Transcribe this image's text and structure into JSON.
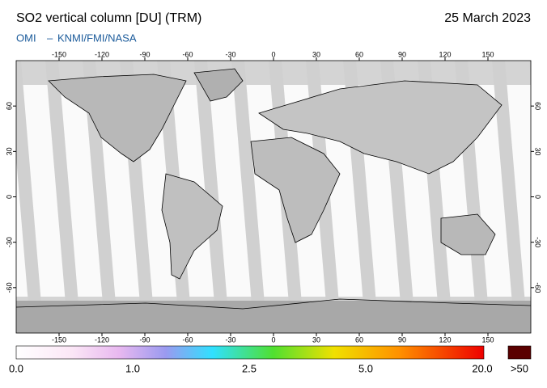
{
  "header": {
    "title": "SO2 vertical column [DU] (TRM)",
    "date": "25 March 2023",
    "instrument": "OMI",
    "separator": "–",
    "agencies": "KNMI/FMI/NASA"
  },
  "map": {
    "lonlim": [
      -180,
      180
    ],
    "latlim": [
      -90,
      90
    ],
    "lon_ticks": [
      -150,
      -120,
      -90,
      -60,
      -30,
      0,
      30,
      60,
      90,
      120,
      150
    ],
    "lat_ticks": [
      60,
      30,
      0,
      -30,
      -60
    ]
  },
  "colorbar": {
    "labels": [
      "0.0",
      "1.0",
      "2.5",
      "5.0",
      "20.0"
    ],
    "overflow_label": ">50"
  }
}
